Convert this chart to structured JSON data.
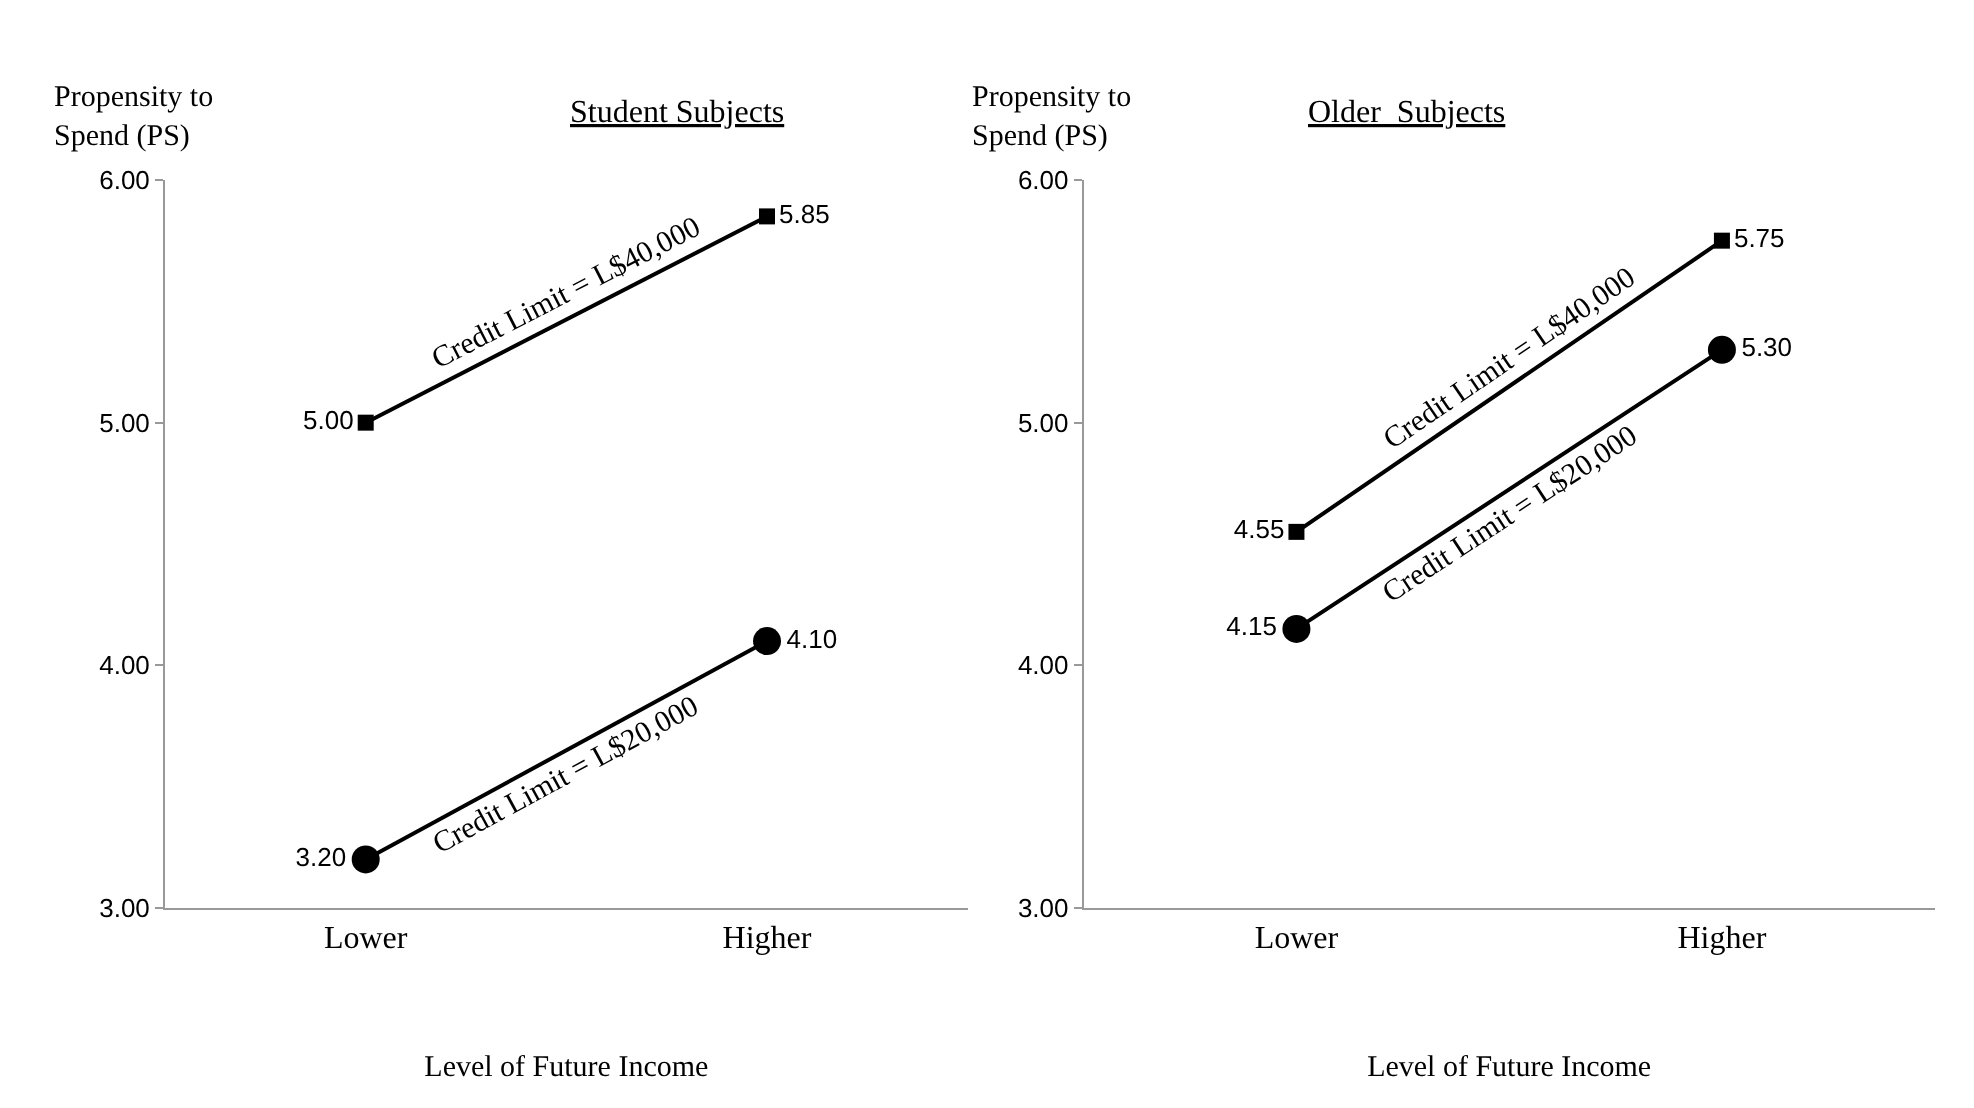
{
  "chart_data": [
    {
      "type": "line",
      "title": "Student Subjects",
      "ylabel": "Propensity to Spend (PS)",
      "xlabel": "Level of Future Income",
      "categories": [
        "Lower",
        "Higher"
      ],
      "ylim": [
        3,
        6
      ],
      "yticks": [
        {
          "value": 3,
          "label": "3.00"
        },
        {
          "value": 4,
          "label": "4.00"
        },
        {
          "value": 5,
          "label": "5.00"
        },
        {
          "value": 6,
          "label": "6.00"
        }
      ],
      "data_labels": true,
      "line_style": "solid",
      "series": [
        {
          "name": "Credit Limit = L$40,000",
          "color": "#000000",
          "marker": "square",
          "values": [
            5.0,
            5.85
          ],
          "value_labels": [
            "5.00",
            "5.85"
          ]
        },
        {
          "name": "Credit Limit = L$20,000",
          "color": "#000000",
          "marker": "circle",
          "values": [
            3.2,
            4.1
          ],
          "value_labels": [
            "3.20",
            "4.10"
          ]
        }
      ]
    },
    {
      "type": "line",
      "title": "Older  Subjects",
      "ylabel": "Propensity to Spend (PS)",
      "xlabel": "Level of Future Income",
      "categories": [
        "Lower",
        "Higher"
      ],
      "ylim": [
        3,
        6
      ],
      "yticks": [
        {
          "value": 3,
          "label": "3.00"
        },
        {
          "value": 4,
          "label": "4.00"
        },
        {
          "value": 5,
          "label": "5.00"
        },
        {
          "value": 6,
          "label": "6.00"
        }
      ],
      "data_labels": true,
      "line_style": "solid",
      "series": [
        {
          "name": "Credit Limit = L$40,000",
          "color": "#000000",
          "marker": "square",
          "values": [
            4.55,
            5.75
          ],
          "value_labels": [
            "4.55",
            "5.75"
          ]
        },
        {
          "name": "Credit Limit = L$20,000",
          "color": "#000000",
          "marker": "circle",
          "values": [
            4.15,
            5.3
          ],
          "value_labels": [
            "4.15",
            "5.30"
          ]
        }
      ]
    }
  ]
}
